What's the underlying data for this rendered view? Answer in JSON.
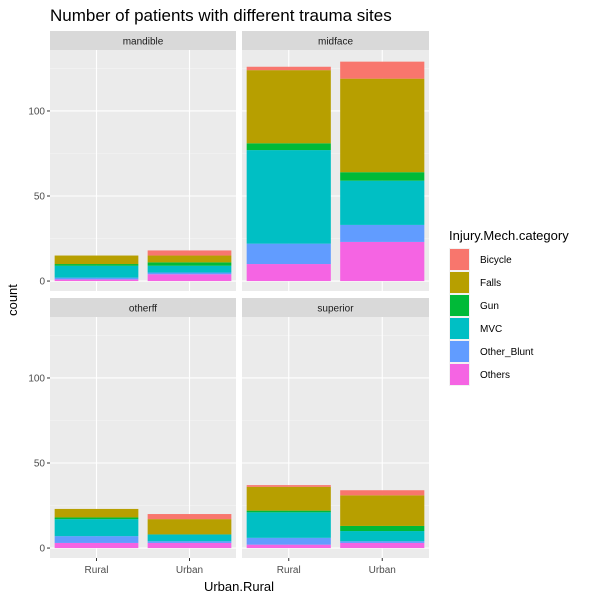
{
  "chart_data": {
    "type": "bar",
    "stacked": true,
    "title": "Number of patients with different trauma sites",
    "xlabel": "Urban.Rural",
    "ylabel": "count",
    "ylim": [
      0,
      130
    ],
    "y_ticks": [
      0,
      50,
      100
    ],
    "categories": [
      "Rural",
      "Urban"
    ],
    "legend": {
      "title": "Injury.Mech.category",
      "position": "right",
      "entries": [
        {
          "name": "Bicycle",
          "color": "#F8766D"
        },
        {
          "name": "Falls",
          "color": "#B79F00"
        },
        {
          "name": "Gun",
          "color": "#00BA38"
        },
        {
          "name": "MVC",
          "color": "#00BFC4"
        },
        {
          "name": "Other_Blunt",
          "color": "#619CFF"
        },
        {
          "name": "Others",
          "color": "#F564E3"
        }
      ]
    },
    "stack_order": [
      "Others",
      "Other_Blunt",
      "MVC",
      "Gun",
      "Falls",
      "Bicycle"
    ],
    "facets": [
      {
        "name": "mandible",
        "series": {
          "Rural": {
            "Others": 1,
            "Other_Blunt": 1,
            "MVC": 7,
            "Gun": 1,
            "Falls": 5,
            "Bicycle": 0
          },
          "Urban": {
            "Others": 4,
            "Other_Blunt": 1,
            "MVC": 4,
            "Gun": 2,
            "Falls": 4,
            "Bicycle": 3
          }
        }
      },
      {
        "name": "midface",
        "series": {
          "Rural": {
            "Others": 10,
            "Other_Blunt": 12,
            "MVC": 55,
            "Gun": 4,
            "Falls": 43,
            "Bicycle": 2
          },
          "Urban": {
            "Others": 23,
            "Other_Blunt": 10,
            "MVC": 26,
            "Gun": 5,
            "Falls": 55,
            "Bicycle": 10
          }
        }
      },
      {
        "name": "otherff",
        "series": {
          "Rural": {
            "Others": 3,
            "Other_Blunt": 4,
            "MVC": 10,
            "Gun": 1,
            "Falls": 5,
            "Bicycle": 0
          },
          "Urban": {
            "Others": 3,
            "Other_Blunt": 1,
            "MVC": 4,
            "Gun": 0,
            "Falls": 9,
            "Bicycle": 3
          }
        }
      },
      {
        "name": "superior",
        "series": {
          "Rural": {
            "Others": 2,
            "Other_Blunt": 4,
            "MVC": 15,
            "Gun": 1,
            "Falls": 14,
            "Bicycle": 1
          },
          "Urban": {
            "Others": 3,
            "Other_Blunt": 1,
            "MVC": 6,
            "Gun": 3,
            "Falls": 18,
            "Bicycle": 3
          }
        }
      }
    ]
  }
}
